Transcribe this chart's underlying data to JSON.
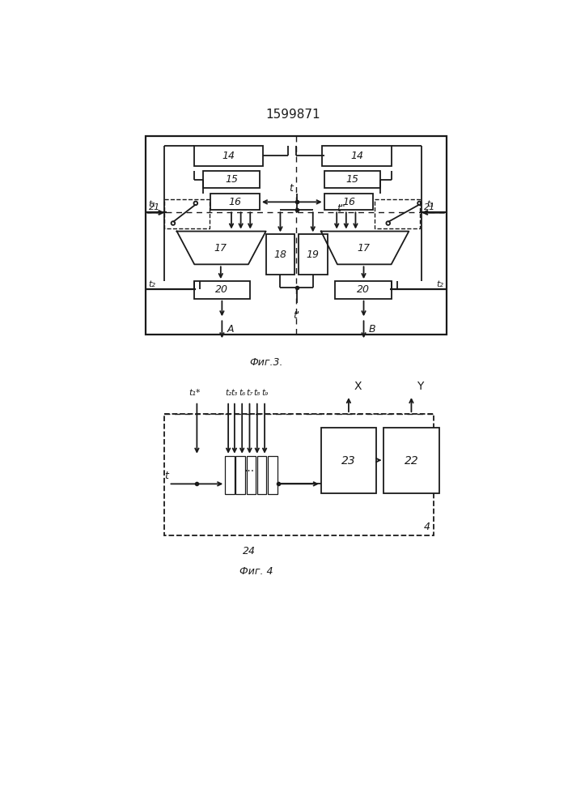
{
  "title": "1599871",
  "fig3_label": "Фиг.3.",
  "fig4_label": "Фиг. 4",
  "bg_color": "#ffffff",
  "line_color": "#1a1a1a"
}
